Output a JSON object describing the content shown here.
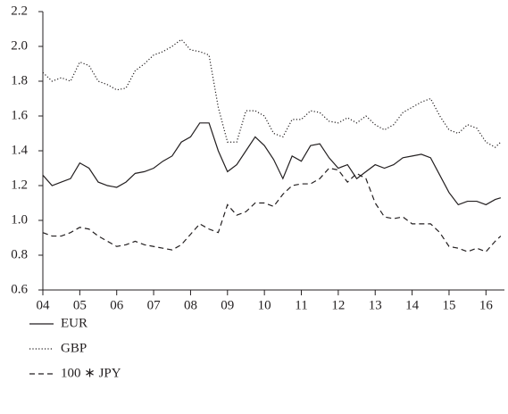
{
  "chart_data": {
    "type": "line",
    "x": [
      4.0,
      4.25,
      4.5,
      4.75,
      5.0,
      5.25,
      5.5,
      5.75,
      6.0,
      6.25,
      6.5,
      6.75,
      7.0,
      7.25,
      7.5,
      7.75,
      8.0,
      8.25,
      8.5,
      8.75,
      9.0,
      9.25,
      9.5,
      9.75,
      10.0,
      10.25,
      10.5,
      10.75,
      11.0,
      11.25,
      11.5,
      11.75,
      12.0,
      12.25,
      12.5,
      12.75,
      13.0,
      13.25,
      13.5,
      13.75,
      14.0,
      14.25,
      14.5,
      14.75,
      15.0,
      15.25,
      15.5,
      15.75,
      16.0,
      16.25,
      16.4
    ],
    "series": [
      {
        "name": "EUR",
        "color": "#231f20",
        "style": "solid",
        "values": [
          1.26,
          1.2,
          1.22,
          1.24,
          1.33,
          1.3,
          1.22,
          1.2,
          1.19,
          1.22,
          1.27,
          1.28,
          1.3,
          1.34,
          1.37,
          1.45,
          1.48,
          1.56,
          1.56,
          1.4,
          1.28,
          1.32,
          1.4,
          1.48,
          1.43,
          1.35,
          1.24,
          1.37,
          1.34,
          1.43,
          1.44,
          1.36,
          1.3,
          1.32,
          1.24,
          1.28,
          1.32,
          1.3,
          1.32,
          1.36,
          1.37,
          1.38,
          1.36,
          1.26,
          1.16,
          1.09,
          1.11,
          1.11,
          1.09,
          1.12,
          1.13
        ]
      },
      {
        "name": "GBP",
        "color": "#231f20",
        "style": "dotted",
        "values": [
          1.85,
          1.8,
          1.82,
          1.8,
          1.91,
          1.89,
          1.8,
          1.78,
          1.75,
          1.76,
          1.86,
          1.9,
          1.95,
          1.97,
          2.0,
          2.04,
          1.98,
          1.97,
          1.95,
          1.65,
          1.45,
          1.45,
          1.63,
          1.63,
          1.6,
          1.5,
          1.48,
          1.58,
          1.58,
          1.63,
          1.62,
          1.57,
          1.56,
          1.59,
          1.56,
          1.6,
          1.55,
          1.52,
          1.55,
          1.62,
          1.65,
          1.68,
          1.7,
          1.6,
          1.52,
          1.5,
          1.55,
          1.53,
          1.45,
          1.42,
          1.45
        ]
      },
      {
        "name": "100 ∗ JPY",
        "color": "#231f20",
        "style": "dashed",
        "values": [
          0.93,
          0.91,
          0.91,
          0.93,
          0.96,
          0.95,
          0.91,
          0.88,
          0.85,
          0.86,
          0.88,
          0.86,
          0.85,
          0.84,
          0.83,
          0.86,
          0.92,
          0.98,
          0.95,
          0.93,
          1.09,
          1.03,
          1.05,
          1.1,
          1.1,
          1.08,
          1.15,
          1.2,
          1.21,
          1.21,
          1.24,
          1.3,
          1.29,
          1.22,
          1.27,
          1.24,
          1.1,
          1.02,
          1.01,
          1.02,
          0.98,
          0.98,
          0.98,
          0.93,
          0.85,
          0.84,
          0.82,
          0.84,
          0.82,
          0.88,
          0.91
        ]
      }
    ],
    "xlim": [
      4,
      16.5
    ],
    "xticks": [
      {
        "value": 4,
        "label": "04"
      },
      {
        "value": 5,
        "label": "05"
      },
      {
        "value": 6,
        "label": "06"
      },
      {
        "value": 7,
        "label": "07"
      },
      {
        "value": 8,
        "label": "08"
      },
      {
        "value": 9,
        "label": "09"
      },
      10,
      11,
      12,
      13,
      14,
      15,
      16
    ],
    "ylim": [
      0.6,
      2.2
    ],
    "yticks": [
      0.6,
      0.8,
      {
        "value": 1.0,
        "label": "1.0"
      },
      1.2,
      1.4,
      1.6,
      1.8,
      {
        "value": 2.0,
        "label": "2.0"
      },
      2.2
    ],
    "grid": false,
    "legend": "bottom-left"
  }
}
